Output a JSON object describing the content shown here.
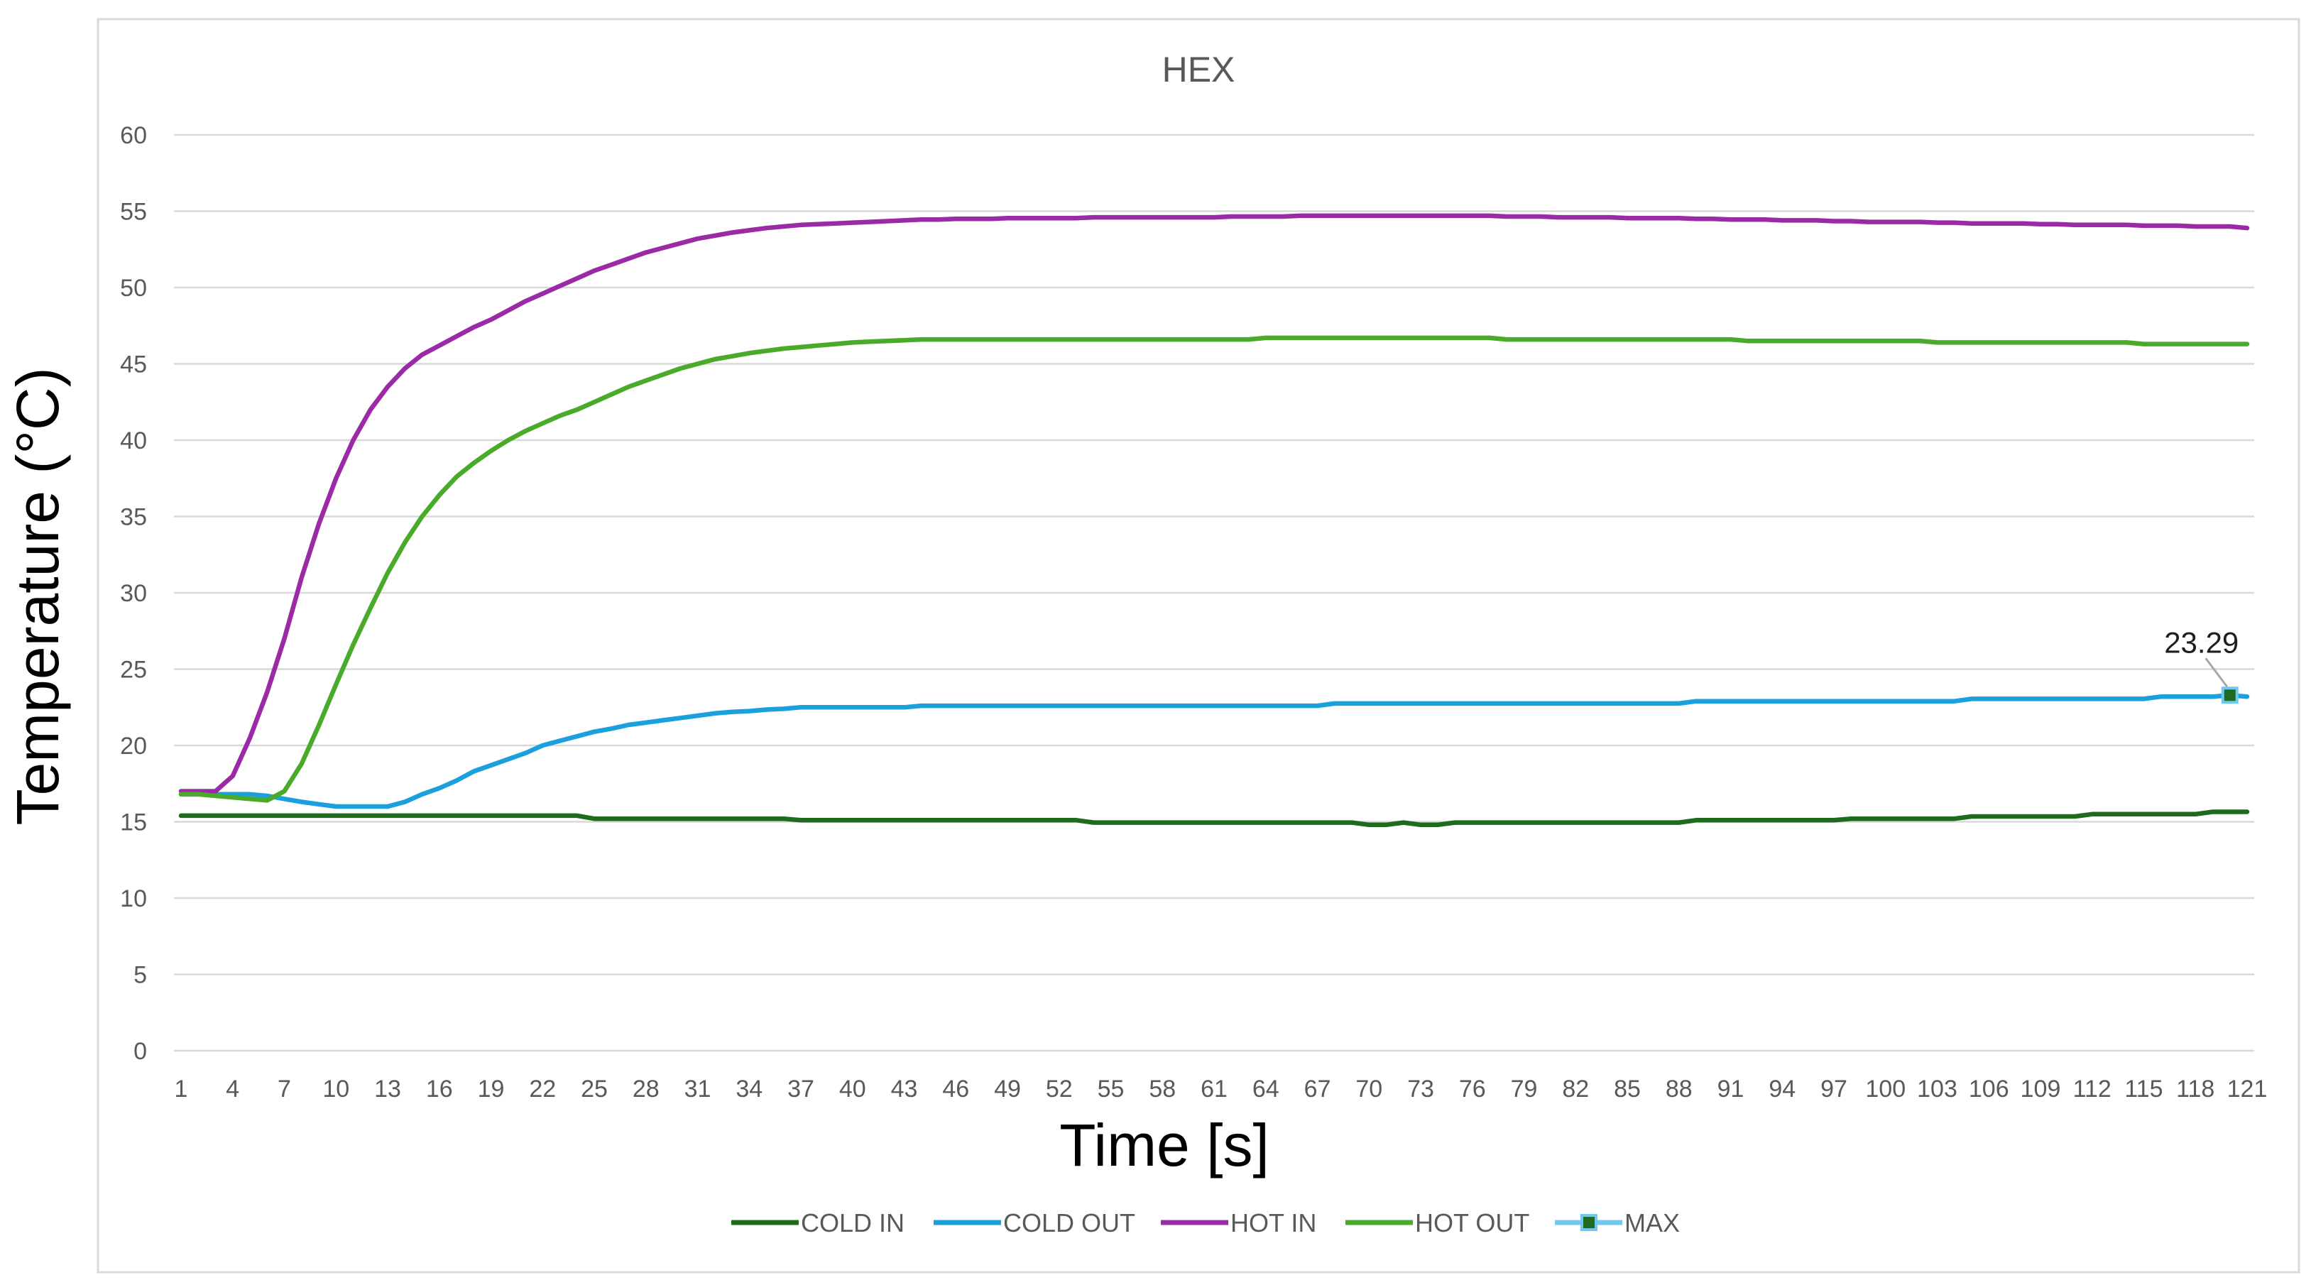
{
  "chart_data": {
    "type": "line",
    "title": "HEX",
    "xlabel": "Time [s]",
    "ylabel": "Temperature (°C)",
    "ylim": [
      0,
      60
    ],
    "yticks": [
      0,
      5,
      10,
      15,
      20,
      25,
      30,
      35,
      40,
      45,
      50,
      55,
      60
    ],
    "x": [
      1,
      2,
      3,
      4,
      5,
      6,
      7,
      8,
      9,
      10,
      11,
      12,
      13,
      14,
      15,
      16,
      17,
      18,
      19,
      20,
      21,
      22,
      23,
      24,
      25,
      26,
      27,
      28,
      29,
      30,
      31,
      32,
      33,
      34,
      35,
      36,
      37,
      38,
      39,
      40,
      41,
      42,
      43,
      44,
      45,
      46,
      47,
      48,
      49,
      50,
      51,
      52,
      53,
      54,
      55,
      56,
      57,
      58,
      59,
      60,
      61,
      62,
      63,
      64,
      65,
      66,
      67,
      68,
      69,
      70,
      71,
      72,
      73,
      74,
      75,
      76,
      77,
      78,
      79,
      80,
      81,
      82,
      83,
      84,
      85,
      86,
      87,
      88,
      89,
      90,
      91,
      92,
      93,
      94,
      95,
      96,
      97,
      98,
      99,
      100,
      101,
      102,
      103,
      104,
      105,
      106,
      107,
      108,
      109,
      110,
      111,
      112,
      113,
      114,
      115,
      116,
      117,
      118,
      119,
      120,
      121
    ],
    "xticks": [
      1,
      4,
      7,
      10,
      13,
      16,
      19,
      22,
      25,
      28,
      31,
      34,
      37,
      40,
      43,
      46,
      49,
      52,
      55,
      58,
      61,
      64,
      67,
      70,
      73,
      76,
      79,
      82,
      85,
      88,
      91,
      94,
      97,
      100,
      103,
      106,
      109,
      112,
      115,
      118,
      121
    ],
    "grid": true,
    "legend_position": "bottom",
    "series": [
      {
        "name": "COLD IN",
        "color": "#1e6b1e",
        "values": [
          15.4,
          15.4,
          15.4,
          15.4,
          15.4,
          15.4,
          15.4,
          15.4,
          15.4,
          15.4,
          15.4,
          15.4,
          15.4,
          15.4,
          15.4,
          15.4,
          15.4,
          15.4,
          15.4,
          15.4,
          15.4,
          15.4,
          15.4,
          15.4,
          15.2,
          15.2,
          15.2,
          15.2,
          15.2,
          15.2,
          15.2,
          15.2,
          15.2,
          15.2,
          15.2,
          15.2,
          15.1,
          15.1,
          15.1,
          15.1,
          15.1,
          15.1,
          15.1,
          15.1,
          15.1,
          15.1,
          15.1,
          15.1,
          15.1,
          15.1,
          15.1,
          15.1,
          15.1,
          14.95,
          14.95,
          14.95,
          14.95,
          14.95,
          14.95,
          14.95,
          14.95,
          14.95,
          14.95,
          14.95,
          14.95,
          14.95,
          14.95,
          14.95,
          14.95,
          14.8,
          14.8,
          14.95,
          14.8,
          14.8,
          14.95,
          14.95,
          14.95,
          14.95,
          14.95,
          14.95,
          14.95,
          14.95,
          14.95,
          14.95,
          14.95,
          14.95,
          14.95,
          14.95,
          15.1,
          15.1,
          15.1,
          15.1,
          15.1,
          15.1,
          15.1,
          15.1,
          15.1,
          15.2,
          15.2,
          15.2,
          15.2,
          15.2,
          15.2,
          15.2,
          15.35,
          15.35,
          15.35,
          15.35,
          15.35,
          15.35,
          15.35,
          15.5,
          15.5,
          15.5,
          15.5,
          15.5,
          15.5,
          15.5,
          15.65,
          15.65,
          15.65
        ]
      },
      {
        "name": "COLD OUT",
        "color": "#1aa0dc",
        "values": [
          16.8,
          16.8,
          16.8,
          16.8,
          16.8,
          16.7,
          16.5,
          16.3,
          16.15,
          16.0,
          16.0,
          16.0,
          16.0,
          16.3,
          16.8,
          17.2,
          17.7,
          18.3,
          18.7,
          19.1,
          19.5,
          20.0,
          20.3,
          20.6,
          20.9,
          21.1,
          21.35,
          21.5,
          21.65,
          21.8,
          21.95,
          22.1,
          22.2,
          22.25,
          22.35,
          22.4,
          22.5,
          22.5,
          22.5,
          22.5,
          22.5,
          22.5,
          22.5,
          22.6,
          22.6,
          22.6,
          22.6,
          22.6,
          22.6,
          22.6,
          22.6,
          22.6,
          22.6,
          22.6,
          22.6,
          22.6,
          22.6,
          22.6,
          22.6,
          22.6,
          22.6,
          22.6,
          22.6,
          22.6,
          22.6,
          22.6,
          22.6,
          22.75,
          22.75,
          22.75,
          22.75,
          22.75,
          22.75,
          22.75,
          22.75,
          22.75,
          22.75,
          22.75,
          22.75,
          22.75,
          22.75,
          22.75,
          22.75,
          22.75,
          22.75,
          22.75,
          22.75,
          22.75,
          22.9,
          22.9,
          22.9,
          22.9,
          22.9,
          22.9,
          22.9,
          22.9,
          22.9,
          22.9,
          22.9,
          22.9,
          22.9,
          22.9,
          22.9,
          22.9,
          23.05,
          23.05,
          23.05,
          23.05,
          23.05,
          23.05,
          23.05,
          23.05,
          23.05,
          23.05,
          23.05,
          23.2,
          23.2,
          23.2,
          23.2,
          23.29,
          23.2
        ]
      },
      {
        "name": "HOT IN",
        "color": "#9a2aa6",
        "values": [
          17.0,
          17.0,
          17.0,
          18.0,
          20.5,
          23.5,
          27.0,
          31.0,
          34.5,
          37.5,
          40.0,
          42.0,
          43.5,
          44.7,
          45.6,
          46.2,
          46.8,
          47.4,
          47.9,
          48.5,
          49.1,
          49.6,
          50.1,
          50.6,
          51.1,
          51.5,
          51.9,
          52.3,
          52.6,
          52.9,
          53.2,
          53.4,
          53.6,
          53.75,
          53.9,
          54.0,
          54.1,
          54.15,
          54.2,
          54.25,
          54.3,
          54.35,
          54.4,
          54.45,
          54.45,
          54.5,
          54.5,
          54.5,
          54.55,
          54.55,
          54.55,
          54.55,
          54.55,
          54.6,
          54.6,
          54.6,
          54.6,
          54.6,
          54.6,
          54.6,
          54.6,
          54.65,
          54.65,
          54.65,
          54.65,
          54.7,
          54.7,
          54.7,
          54.7,
          54.7,
          54.7,
          54.7,
          54.7,
          54.7,
          54.7,
          54.7,
          54.7,
          54.65,
          54.65,
          54.65,
          54.6,
          54.6,
          54.6,
          54.6,
          54.55,
          54.55,
          54.55,
          54.55,
          54.5,
          54.5,
          54.45,
          54.45,
          54.45,
          54.4,
          54.4,
          54.4,
          54.35,
          54.35,
          54.3,
          54.3,
          54.3,
          54.3,
          54.25,
          54.25,
          54.2,
          54.2,
          54.2,
          54.2,
          54.15,
          54.15,
          54.1,
          54.1,
          54.1,
          54.1,
          54.05,
          54.05,
          54.05,
          54.0,
          54.0,
          54.0,
          53.9
        ]
      },
      {
        "name": "HOT OUT",
        "color": "#4aaa2a",
        "values": [
          16.8,
          16.8,
          16.7,
          16.6,
          16.5,
          16.4,
          17.0,
          18.8,
          21.3,
          24.0,
          26.6,
          29.0,
          31.3,
          33.3,
          35.0,
          36.4,
          37.6,
          38.5,
          39.3,
          40.0,
          40.6,
          41.1,
          41.6,
          42.0,
          42.5,
          43.0,
          43.5,
          43.9,
          44.3,
          44.7,
          45.0,
          45.3,
          45.5,
          45.7,
          45.85,
          46.0,
          46.1,
          46.2,
          46.3,
          46.4,
          46.45,
          46.5,
          46.55,
          46.6,
          46.6,
          46.6,
          46.6,
          46.6,
          46.6,
          46.6,
          46.6,
          46.6,
          46.6,
          46.6,
          46.6,
          46.6,
          46.6,
          46.6,
          46.6,
          46.6,
          46.6,
          46.6,
          46.6,
          46.7,
          46.7,
          46.7,
          46.7,
          46.7,
          46.7,
          46.7,
          46.7,
          46.7,
          46.7,
          46.7,
          46.7,
          46.7,
          46.7,
          46.6,
          46.6,
          46.6,
          46.6,
          46.6,
          46.6,
          46.6,
          46.6,
          46.6,
          46.6,
          46.6,
          46.6,
          46.6,
          46.6,
          46.5,
          46.5,
          46.5,
          46.5,
          46.5,
          46.5,
          46.5,
          46.5,
          46.5,
          46.5,
          46.5,
          46.4,
          46.4,
          46.4,
          46.4,
          46.4,
          46.4,
          46.4,
          46.4,
          46.4,
          46.4,
          46.4,
          46.4,
          46.3,
          46.3,
          46.3,
          46.3,
          46.3,
          46.3,
          46.3
        ]
      },
      {
        "name": "MAX",
        "color": "#6ec8f0",
        "marker_color": "#1e6b1e",
        "x": 120,
        "value": 23.29,
        "data_label": "23.29"
      }
    ]
  }
}
